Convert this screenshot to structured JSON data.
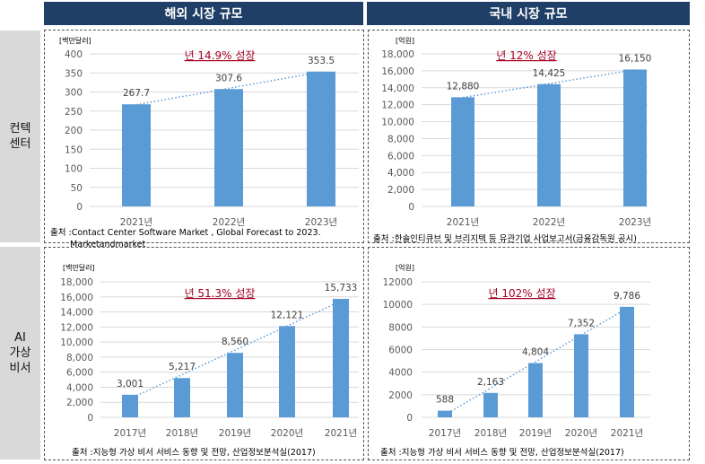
{
  "headers": {
    "overseas": "해외 시장 규모",
    "domestic": "국내 시장 규모"
  },
  "rows": {
    "contact_center": "컨텍\n센터",
    "ai_assistant": "AI\n가상\n비서"
  },
  "colors": {
    "header": "#1f3f66",
    "bar": "#5b9bd5",
    "trend": "#5b9bd5",
    "growth_text": "#a50021",
    "side": "#d9d9d9"
  },
  "chart_data": [
    {
      "type": "bar",
      "unit": "[백만달러]",
      "growth": "년 14.9% 성장",
      "categories": [
        "2021년",
        "2022년",
        "2023년"
      ],
      "values": [
        267.7,
        307.6,
        353.5
      ],
      "labels": [
        "267.7",
        "307.6",
        "353.5"
      ],
      "ylim": [
        0,
        400
      ],
      "yticks": [
        "0",
        "50",
        "100",
        "150",
        "200",
        "250",
        "300",
        "350",
        "400"
      ],
      "trendline": "linear dotted",
      "grid": true,
      "source": [
        "출처 :Contact Center Software Market , Global Forecast to 2023.",
        "Marketandmarket"
      ]
    },
    {
      "type": "bar",
      "unit": "[억원]",
      "growth": "년 12% 성장",
      "categories": [
        "2021년",
        "2022년",
        "2023년"
      ],
      "values": [
        12880,
        14425,
        16150
      ],
      "labels": [
        "12,880",
        "14,425",
        "16,150"
      ],
      "ylim": [
        0,
        18000
      ],
      "yticks": [
        "0",
        "2,000",
        "4,000",
        "6,000",
        "8,000",
        "10,000",
        "12,000",
        "14,000",
        "16,000",
        "18,000"
      ],
      "trendline": "linear dotted",
      "grid": true,
      "source": [
        "출처 :한솔인티큐브 및 브리지텍 등 유관기업 사업보고서(금융감독원 공시)"
      ]
    },
    {
      "type": "bar",
      "unit": "[백만달러]",
      "growth": "년 51.3% 성장",
      "categories": [
        "2017년",
        "2018년",
        "2019년",
        "2020년",
        "2021년"
      ],
      "values": [
        3001,
        5217,
        8560,
        12121,
        15733
      ],
      "labels": [
        "3,001",
        "5,217",
        "8,560",
        "12,121",
        "15,733"
      ],
      "ylim": [
        0,
        18000
      ],
      "yticks": [
        "0",
        "2,000",
        "4,000",
        "6,000",
        "8,000",
        "10,000",
        "12,000",
        "14,000",
        "16,000",
        "18,000"
      ],
      "trendline": "linear dotted",
      "grid": true,
      "source": [
        "출처 :지능형 가상 비서 서비스 동향 및 전망, 산업정보분석실(2017)"
      ]
    },
    {
      "type": "bar",
      "unit": "[억원]",
      "growth": "년 102% 성장",
      "categories": [
        "2017년",
        "2018년",
        "2019년",
        "2020년",
        "2021년"
      ],
      "values": [
        588,
        2163,
        4804,
        7352,
        9786
      ],
      "labels": [
        "588",
        "2,163",
        "4,804",
        "7,352",
        "9,786"
      ],
      "ylim": [
        0,
        12000
      ],
      "yticks": [
        "0",
        "2000",
        "4000",
        "6000",
        "8000",
        "10000",
        "12000"
      ],
      "trendline": "linear dotted",
      "grid": true,
      "source": [
        "출처 :지능형 가상 비서 서비스 동향 및 전망, 산업정보분석실(2017)"
      ]
    }
  ]
}
